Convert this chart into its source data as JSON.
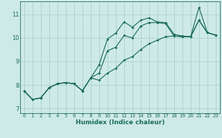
{
  "xlabel": "Humidex (Indice chaleur)",
  "bg_color": "#ceeae6",
  "grid_color": "#aed4d0",
  "line_color": "#1a6b5a",
  "xlim": [
    -0.5,
    23.5
  ],
  "ylim": [
    6.8,
    11.55
  ],
  "xticks": [
    0,
    1,
    2,
    3,
    4,
    5,
    6,
    7,
    8,
    9,
    10,
    11,
    12,
    13,
    14,
    15,
    16,
    17,
    18,
    19,
    20,
    21,
    22,
    23
  ],
  "yticks": [
    7,
    8,
    9,
    10,
    11
  ],
  "series": [
    [
      7.75,
      7.38,
      7.45,
      7.88,
      8.05,
      8.1,
      8.05,
      7.75,
      8.3,
      8.85,
      9.95,
      10.2,
      10.68,
      10.45,
      10.75,
      10.85,
      10.68,
      10.65,
      10.15,
      10.08,
      10.05,
      10.75,
      10.22,
      10.12
    ],
    [
      7.75,
      7.38,
      7.45,
      7.88,
      8.05,
      8.1,
      8.05,
      7.75,
      8.3,
      8.5,
      9.45,
      9.6,
      10.1,
      10.0,
      10.5,
      10.65,
      10.65,
      10.6,
      10.08,
      10.05,
      10.05,
      11.3,
      10.22,
      10.12
    ],
    [
      7.75,
      7.38,
      7.45,
      7.88,
      8.05,
      8.1,
      8.05,
      7.75,
      8.3,
      8.2,
      8.5,
      8.7,
      9.05,
      9.2,
      9.5,
      9.75,
      9.9,
      10.05,
      10.08,
      10.05,
      10.05,
      10.75,
      10.22,
      10.12
    ]
  ]
}
